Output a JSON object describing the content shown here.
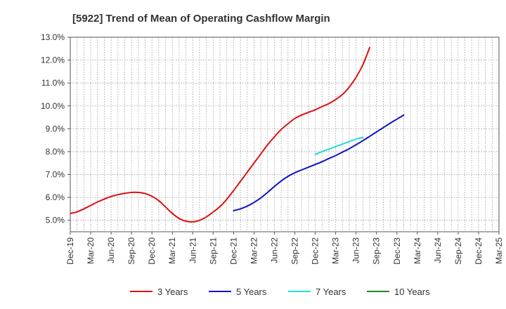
{
  "chart_data": {
    "type": "line",
    "title": "[5922]  Trend of Mean of Operating Cashflow Margin",
    "xlabel": "",
    "ylabel": "",
    "ylim": [
      4.5,
      13.0
    ],
    "yticks": [
      5.0,
      6.0,
      7.0,
      8.0,
      9.0,
      10.0,
      11.0,
      12.0,
      13.0
    ],
    "ytick_labels": [
      "5.0%",
      "6.0%",
      "7.0%",
      "8.0%",
      "9.0%",
      "10.0%",
      "11.0%",
      "12.0%",
      "13.0%"
    ],
    "x_categories": [
      "Dec-19",
      "Mar-20",
      "Jun-20",
      "Sep-20",
      "Dec-20",
      "Mar-21",
      "Jun-21",
      "Sep-21",
      "Dec-21",
      "Mar-22",
      "Jun-22",
      "Sep-22",
      "Dec-22",
      "Mar-23",
      "Jun-23",
      "Sep-23",
      "Dec-23",
      "Mar-24",
      "Jun-24",
      "Sep-24",
      "Dec-24",
      "Mar-25"
    ],
    "grid": true,
    "legend_position": "bottom",
    "series": [
      {
        "name": "3 Years",
        "color": "#dd1111",
        "start_index": 0,
        "values": [
          5.3,
          5.37,
          5.5,
          5.65,
          5.8,
          5.93,
          6.04,
          6.12,
          6.18,
          6.22,
          6.22,
          6.17,
          6.05,
          5.86,
          5.58,
          5.3,
          5.08,
          4.96,
          4.93,
          5.0,
          5.15,
          5.36,
          5.6,
          5.92,
          6.3,
          6.7,
          7.1,
          7.5,
          7.9,
          8.3,
          8.65,
          8.97,
          9.22,
          9.45,
          9.6,
          9.72,
          9.83,
          9.97,
          10.1,
          10.28,
          10.5,
          10.82,
          11.25,
          11.8,
          12.55
        ]
      },
      {
        "name": "5 Years",
        "color": "#1111cc",
        "start_index": 24,
        "values": [
          5.42,
          5.5,
          5.62,
          5.78,
          5.98,
          6.22,
          6.48,
          6.72,
          6.92,
          7.08,
          7.2,
          7.32,
          7.44,
          7.56,
          7.7,
          7.83,
          7.98,
          8.13,
          8.3,
          8.48,
          8.67,
          8.86,
          9.05,
          9.24,
          9.42,
          9.6
        ]
      },
      {
        "name": "7 Years",
        "color": "#22dddd",
        "start_index": 36,
        "values": [
          7.88,
          8.0,
          8.11,
          8.22,
          8.33,
          8.44,
          8.55,
          8.62
        ]
      },
      {
        "name": "10 Years",
        "color": "#228822",
        "start_index": 0,
        "values": []
      }
    ]
  }
}
